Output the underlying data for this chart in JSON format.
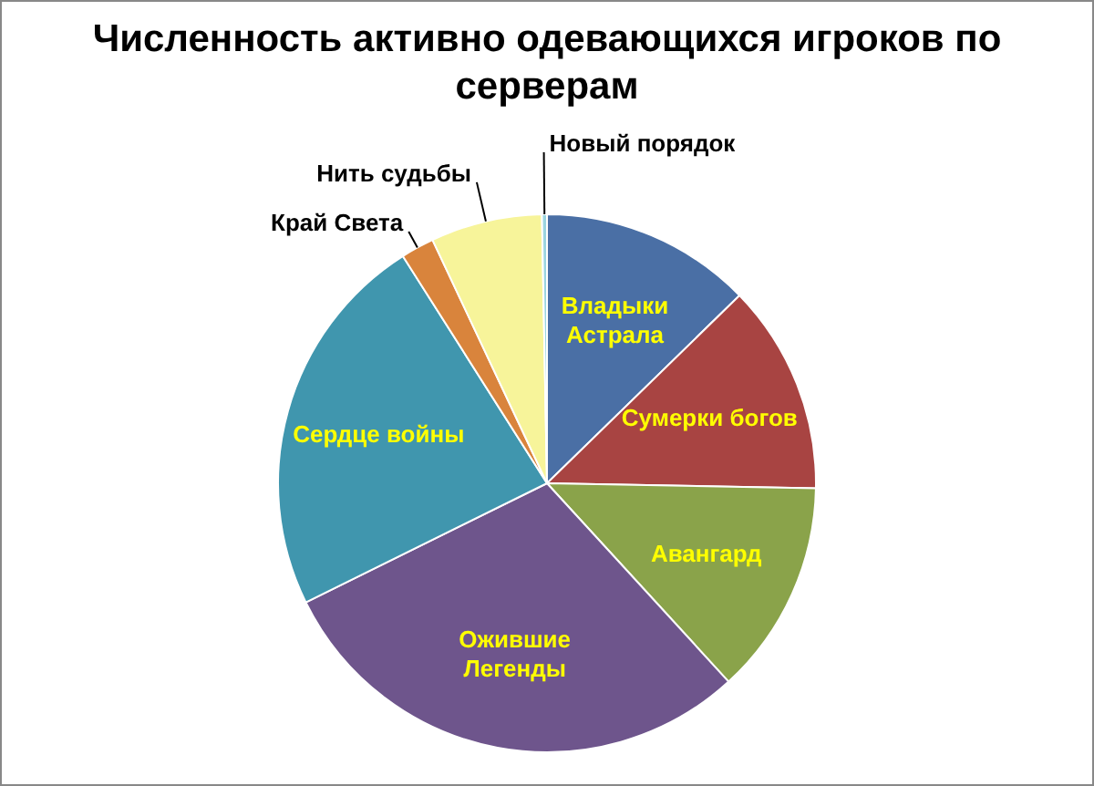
{
  "chart_data": {
    "type": "pie",
    "title": "Численность активно одевающихся игроков по серверам",
    "categories": [
      "Владыки Астрала",
      "Сумерки богов",
      "Авангард",
      "Ожившие Легенды",
      "Сердце войны",
      "Край Света",
      "Нить судьбы",
      "Новый порядок"
    ],
    "values": [
      12.7,
      12.6,
      12.9,
      29.5,
      23.3,
      2.0,
      6.7,
      0.3
    ],
    "colors": [
      "#4a6fa5",
      "#a84442",
      "#8aa34a",
      "#6e558c",
      "#4096ae",
      "#d9843c",
      "#f7f49a",
      "#9bd5e0"
    ]
  }
}
